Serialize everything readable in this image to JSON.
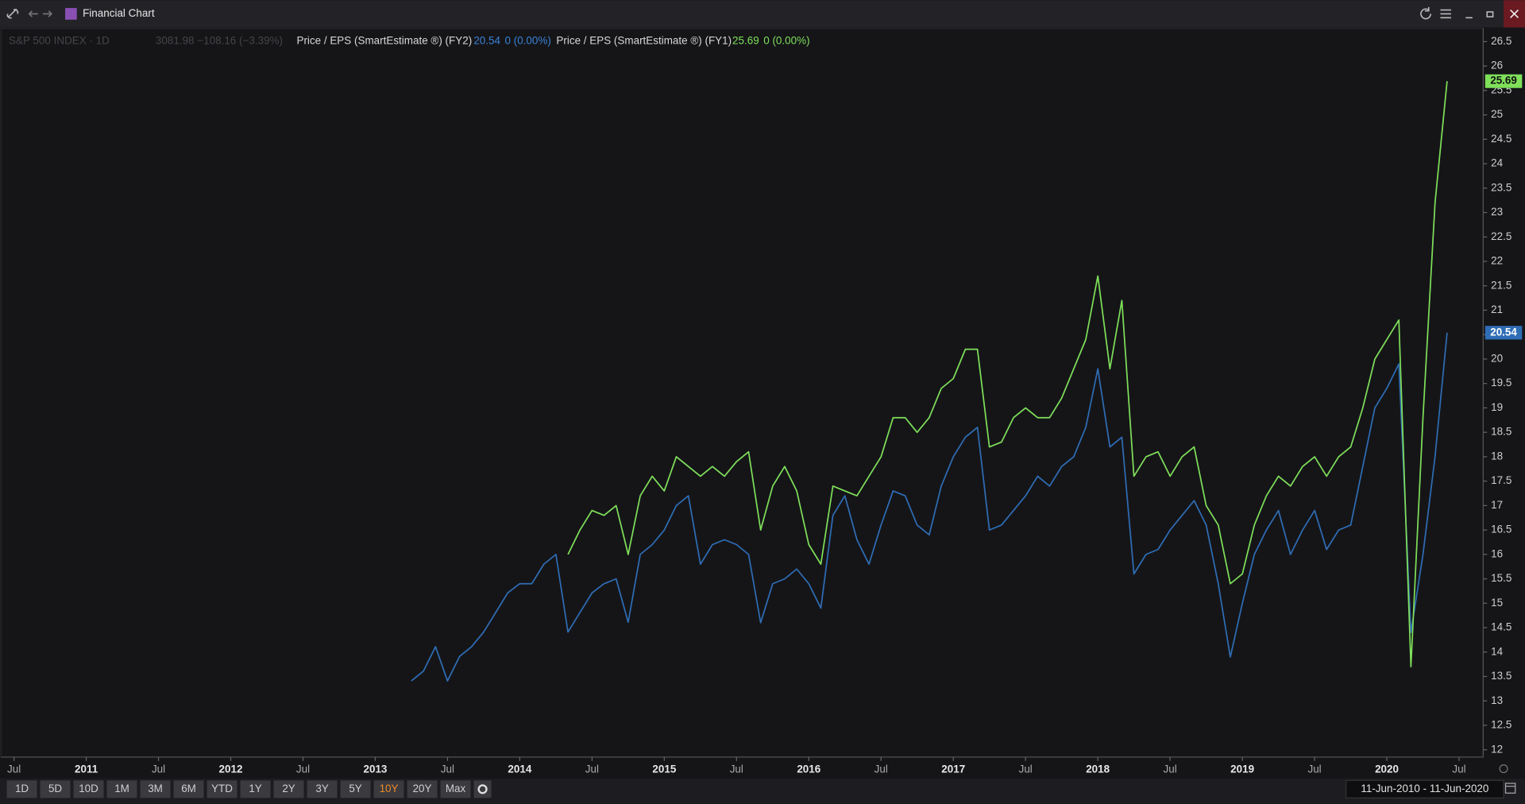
{
  "window": {
    "title": "Financial Chart"
  },
  "header": {
    "index_name": "S&P 500 INDEX · 1D",
    "index_quote": "3081.98 −108.16 (−3.39%)"
  },
  "chart_data": {
    "type": "line",
    "x": [
      "2013-04",
      "2013-05",
      "2013-06",
      "2013-07",
      "2013-08",
      "2013-09",
      "2013-10",
      "2013-11",
      "2013-12",
      "2014-01",
      "2014-02",
      "2014-03",
      "2014-04",
      "2014-05",
      "2014-06",
      "2014-07",
      "2014-08",
      "2014-09",
      "2014-10",
      "2014-11",
      "2014-12",
      "2015-01",
      "2015-02",
      "2015-03",
      "2015-04",
      "2015-05",
      "2015-06",
      "2015-07",
      "2015-08",
      "2015-09",
      "2015-10",
      "2015-11",
      "2015-12",
      "2016-01",
      "2016-02",
      "2016-03",
      "2016-04",
      "2016-05",
      "2016-06",
      "2016-07",
      "2016-08",
      "2016-09",
      "2016-10",
      "2016-11",
      "2016-12",
      "2017-01",
      "2017-02",
      "2017-03",
      "2017-04",
      "2017-05",
      "2017-06",
      "2017-07",
      "2017-08",
      "2017-09",
      "2017-10",
      "2017-11",
      "2017-12",
      "2018-01",
      "2018-02",
      "2018-03",
      "2018-04",
      "2018-05",
      "2018-06",
      "2018-07",
      "2018-08",
      "2018-09",
      "2018-10",
      "2018-11",
      "2018-12",
      "2019-01",
      "2019-02",
      "2019-03",
      "2019-04",
      "2019-05",
      "2019-06",
      "2019-07",
      "2019-08",
      "2019-09",
      "2019-10",
      "2019-11",
      "2019-12",
      "2020-01",
      "2020-02",
      "2020-03",
      "2020-04",
      "2020-05",
      "2020-06"
    ],
    "xlim": [
      "2010-06",
      "2020-09"
    ],
    "xticks": [
      {
        "value": "2010-07",
        "label": "Jul"
      },
      {
        "value": "2011-01",
        "label": "2011"
      },
      {
        "value": "2011-07",
        "label": "Jul"
      },
      {
        "value": "2012-01",
        "label": "2012"
      },
      {
        "value": "2012-07",
        "label": "Jul"
      },
      {
        "value": "2013-01",
        "label": "2013"
      },
      {
        "value": "2013-07",
        "label": "Jul"
      },
      {
        "value": "2014-01",
        "label": "2014"
      },
      {
        "value": "2014-07",
        "label": "Jul"
      },
      {
        "value": "2015-01",
        "label": "2015"
      },
      {
        "value": "2015-07",
        "label": "Jul"
      },
      {
        "value": "2016-01",
        "label": "2016"
      },
      {
        "value": "2016-07",
        "label": "Jul"
      },
      {
        "value": "2017-01",
        "label": "2017"
      },
      {
        "value": "2017-07",
        "label": "Jul"
      },
      {
        "value": "2018-01",
        "label": "2018"
      },
      {
        "value": "2018-07",
        "label": "Jul"
      },
      {
        "value": "2019-01",
        "label": "2019"
      },
      {
        "value": "2019-07",
        "label": "Jul"
      },
      {
        "value": "2020-01",
        "label": "2020"
      },
      {
        "value": "2020-07",
        "label": "Jul"
      }
    ],
    "ylim": [
      11.85,
      26.75
    ],
    "yticks": [
      12,
      12.5,
      13,
      13.5,
      14,
      14.5,
      15,
      15.5,
      16,
      16.5,
      17,
      17.5,
      18,
      18.5,
      19,
      19.5,
      20,
      20.5,
      21,
      21.5,
      22,
      22.5,
      23,
      23.5,
      24,
      24.5,
      25,
      25.5,
      26,
      26.5
    ],
    "grid": false,
    "series": [
      {
        "name": "Price / EPS (SmartEstimate ®) (FY2)",
        "color": "#2f6db5",
        "change": "0 (0.00%)",
        "values": [
          13.41,
          13.61,
          14.11,
          13.41,
          13.91,
          14.11,
          14.41,
          14.81,
          15.21,
          15.4,
          15.4,
          15.8,
          16.0,
          14.41,
          14.81,
          15.21,
          15.4,
          15.5,
          14.61,
          16.0,
          16.2,
          16.5,
          17.0,
          17.2,
          15.8,
          16.2,
          16.3,
          16.2,
          16.0,
          14.6,
          15.4,
          15.5,
          15.7,
          15.4,
          14.9,
          16.8,
          17.2,
          16.3,
          15.8,
          16.6,
          17.3,
          17.2,
          16.6,
          16.4,
          17.4,
          18.0,
          18.4,
          18.6,
          16.5,
          16.6,
          16.9,
          17.2,
          17.6,
          17.4,
          17.8,
          18.0,
          18.6,
          19.8,
          18.2,
          18.4,
          15.6,
          16.0,
          16.1,
          16.5,
          16.8,
          17.1,
          16.6,
          15.4,
          13.9,
          15.0,
          16.0,
          16.5,
          16.9,
          16.0,
          16.5,
          16.9,
          16.1,
          16.5,
          16.6,
          17.8,
          19.0,
          19.4,
          19.9,
          14.4,
          16.0,
          18.0,
          20.54
        ]
      },
      {
        "name": "Price / EPS (SmartEstimate ®) (FY1)",
        "color": "#7fe05a",
        "change": "0 (0.00%)",
        "values": [
          null,
          null,
          null,
          null,
          null,
          null,
          null,
          null,
          null,
          null,
          null,
          null,
          null,
          16.0,
          16.5,
          16.9,
          16.8,
          17.0,
          16.0,
          17.2,
          17.6,
          17.3,
          18.0,
          17.8,
          17.6,
          17.8,
          17.6,
          17.9,
          18.1,
          16.5,
          17.4,
          17.8,
          17.3,
          16.2,
          15.8,
          17.4,
          17.3,
          17.2,
          17.6,
          18.0,
          18.8,
          18.8,
          18.5,
          18.8,
          19.4,
          19.6,
          20.2,
          20.2,
          18.2,
          18.3,
          18.8,
          19.0,
          18.8,
          18.8,
          19.2,
          19.8,
          20.4,
          21.7,
          19.8,
          21.2,
          17.6,
          18.0,
          18.1,
          17.6,
          18.0,
          18.2,
          17.0,
          16.6,
          15.4,
          15.6,
          16.6,
          17.2,
          17.6,
          17.4,
          17.8,
          18.0,
          17.6,
          18.0,
          18.2,
          19.0,
          20.0,
          20.4,
          20.8,
          13.7,
          18.8,
          23.2,
          25.69
        ]
      }
    ]
  },
  "toolbar": {
    "ranges": [
      "1D",
      "5D",
      "10D",
      "1M",
      "3M",
      "6M",
      "YTD",
      "1Y",
      "2Y",
      "3Y",
      "5Y",
      "10Y",
      "20Y",
      "Max"
    ],
    "active": "10Y",
    "date_range": "11-Jun-2010 - 11-Jun-2020"
  }
}
